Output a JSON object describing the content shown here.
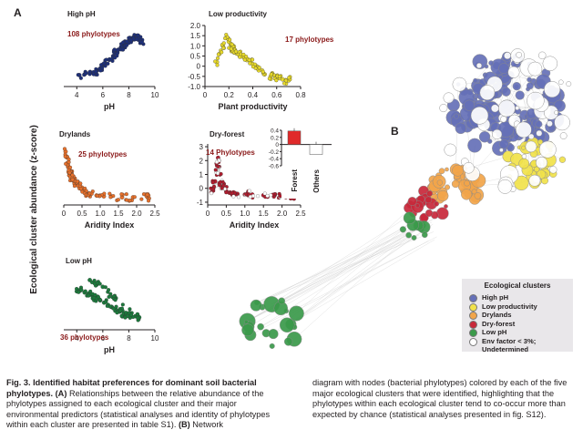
{
  "figure": {
    "panel_a_letter": "A",
    "panel_b_letter": "B",
    "shared_ylabel": "Ecological cluster abundance (z-score)"
  },
  "caption": {
    "title": "Fig. 3. Identified habitat preferences for dominant soil bacterial phylotypes.",
    "part_a_label": "(A)",
    "part_a_text": "Relationships between the relative abundance of the phylotypes assigned to each ecological cluster and their major environmental predictors (statistical analyses and identity of phylotypes within each cluster are presented in table S1).",
    "part_b_label": "(B)",
    "part_b_text_start": "Network",
    "part_b_text_rest": "diagram with nodes (bacterial phylotypes) colored by each of the five major ecological clusters that were identified, highlighting that the phylotypes within each ecological cluster tend to co-occur more than expected by chance (statistical analyses presented in fig. S12)."
  },
  "legend": {
    "title": "Ecological clusters",
    "items": [
      {
        "label": "High pH",
        "color": "#6570b8"
      },
      {
        "label": "Low productivity",
        "color": "#f1e24a"
      },
      {
        "label": "Drylands",
        "color": "#f2a54a"
      },
      {
        "label": "Dry-forest",
        "color": "#c8283a"
      },
      {
        "label": "Low pH",
        "color": "#3a9a4a"
      },
      {
        "label": "Env factor < 3%; Undetermined",
        "color": "#ffffff"
      }
    ]
  },
  "chart_data": [
    {
      "type": "scatter",
      "title": "High pH",
      "annotation": "108 phylotypes",
      "xlabel": "pH",
      "ylabel": "",
      "xlim": [
        3,
        10
      ],
      "ylim": [
        -1.2,
        1.2
      ],
      "xticks": [
        "4",
        "6",
        "8",
        "10"
      ],
      "yticks": [],
      "color": "#1d2f7a",
      "trend": "increasing",
      "x": [
        4.2,
        4.6,
        5.0,
        5.3,
        5.6,
        5.9,
        6.2,
        6.5,
        6.8,
        7.0,
        7.2,
        7.4,
        7.6,
        7.8,
        8.0,
        8.2,
        8.4,
        8.6,
        8.8,
        9.0
      ],
      "y": [
        -0.75,
        -0.72,
        -0.7,
        -0.65,
        -0.55,
        -0.45,
        -0.3,
        -0.15,
        0.0,
        0.15,
        0.25,
        0.35,
        0.45,
        0.5,
        0.6,
        0.7,
        0.75,
        0.8,
        0.7,
        0.6
      ]
    },
    {
      "type": "scatter",
      "title": "Low productivity",
      "annotation": "17 phylotypes",
      "xlabel": "Plant productivity",
      "ylabel": "",
      "xlim": [
        0,
        0.8
      ],
      "ylim": [
        -1.0,
        2.0
      ],
      "xticks": [
        "0",
        "0.2",
        "0.4",
        "0.6",
        "0.8"
      ],
      "yticks": [
        "-1.0",
        "-0.5",
        "0",
        "0.5",
        "1.0",
        "1.5",
        "2.0"
      ],
      "color": "#e8da2a",
      "trend": "decreasing",
      "x": [
        0.1,
        0.12,
        0.15,
        0.18,
        0.2,
        0.22,
        0.25,
        0.28,
        0.3,
        0.33,
        0.35,
        0.38,
        0.4,
        0.43,
        0.45,
        0.5,
        0.55,
        0.6,
        0.65,
        0.7
      ],
      "y": [
        0.2,
        0.6,
        1.0,
        1.4,
        1.2,
        0.9,
        0.8,
        0.6,
        0.5,
        0.4,
        0.3,
        0.2,
        0.1,
        0.0,
        -0.2,
        -0.4,
        -0.5,
        -0.6,
        -0.65,
        -0.7
      ]
    },
    {
      "type": "scatter",
      "title": "Drylands",
      "annotation": "25 phylotypes",
      "xlabel": "Aridity Index",
      "ylabel": "",
      "xlim": [
        0,
        2.5
      ],
      "ylim": [
        -1.2,
        2.0
      ],
      "xticks": [
        "0",
        "0.5",
        "1.0",
        "1.5",
        "2.0",
        "2.5"
      ],
      "yticks": [],
      "color": "#e8702a",
      "trend": "decreasing",
      "x": [
        0.05,
        0.08,
        0.1,
        0.12,
        0.15,
        0.18,
        0.2,
        0.25,
        0.3,
        0.35,
        0.4,
        0.5,
        0.6,
        0.7,
        0.9,
        1.1,
        1.3,
        1.6,
        1.9,
        2.3
      ],
      "y": [
        1.6,
        1.3,
        1.0,
        0.8,
        0.6,
        0.5,
        0.3,
        0.2,
        0.0,
        -0.1,
        -0.2,
        -0.4,
        -0.5,
        -0.6,
        -0.7,
        -0.75,
        -0.75,
        -0.8,
        -0.8,
        -0.8
      ]
    },
    {
      "type": "scatter",
      "title": "Dry-forest",
      "annotation": "14 Phylotypes",
      "xlabel": "Aridity Index",
      "ylabel": "",
      "xlim": [
        0,
        2.5
      ],
      "ylim": [
        -1.2,
        3.2
      ],
      "xticks": [
        "0",
        "0.5",
        "1.0",
        "1.5",
        "2.0",
        "2.5"
      ],
      "yticks": [
        "-1",
        "0",
        "1",
        "2",
        "3"
      ],
      "color": "#b01c2e",
      "trend": "peak",
      "x": [
        0.1,
        0.15,
        0.2,
        0.25,
        0.28,
        0.3,
        0.33,
        0.35,
        0.4,
        0.45,
        0.5,
        0.6,
        0.7,
        0.8,
        1.0,
        1.2,
        1.5,
        1.8,
        2.1,
        2.3
      ],
      "y": [
        -0.3,
        0.0,
        0.5,
        1.2,
        2.2,
        2.0,
        1.0,
        0.4,
        0.1,
        0.0,
        -0.2,
        -0.3,
        -0.4,
        -0.4,
        -0.45,
        -0.45,
        -0.5,
        -0.5,
        -0.5,
        -0.55
      ]
    },
    {
      "type": "bar",
      "title": "Dry-forest inset",
      "categories": [
        "Forest",
        "Others"
      ],
      "values": [
        0.38,
        -0.28
      ],
      "ylim": [
        -0.6,
        0.4
      ],
      "yticks": [
        "0.4",
        "0.2",
        "0",
        "-0.2",
        "-0.4",
        "-0.6"
      ],
      "colors": [
        "#e02a2a",
        "#ffffff"
      ]
    },
    {
      "type": "scatter",
      "title": "Low pH",
      "annotation": "36 phylotypes",
      "xlabel": "pH",
      "ylabel": "",
      "xlim": [
        3,
        10
      ],
      "ylim": [
        -1.2,
        1.5
      ],
      "xticks": [
        "4",
        "6",
        "8",
        "10"
      ],
      "yticks": [],
      "color": "#1c7a3c",
      "trend": "decreasing",
      "x": [
        4.0,
        4.3,
        4.6,
        4.9,
        5.2,
        5.5,
        5.8,
        6.1,
        6.4,
        6.7,
        7.0,
        7.3,
        7.6,
        7.9,
        8.2,
        8.5,
        8.8,
        5.0,
        6.0,
        7.0
      ],
      "y": [
        0.5,
        0.55,
        0.45,
        0.4,
        0.3,
        0.2,
        0.1,
        0.0,
        -0.1,
        -0.2,
        -0.3,
        -0.4,
        -0.5,
        -0.55,
        -0.6,
        -0.6,
        -0.65,
        1.0,
        0.7,
        0.2
      ]
    }
  ]
}
